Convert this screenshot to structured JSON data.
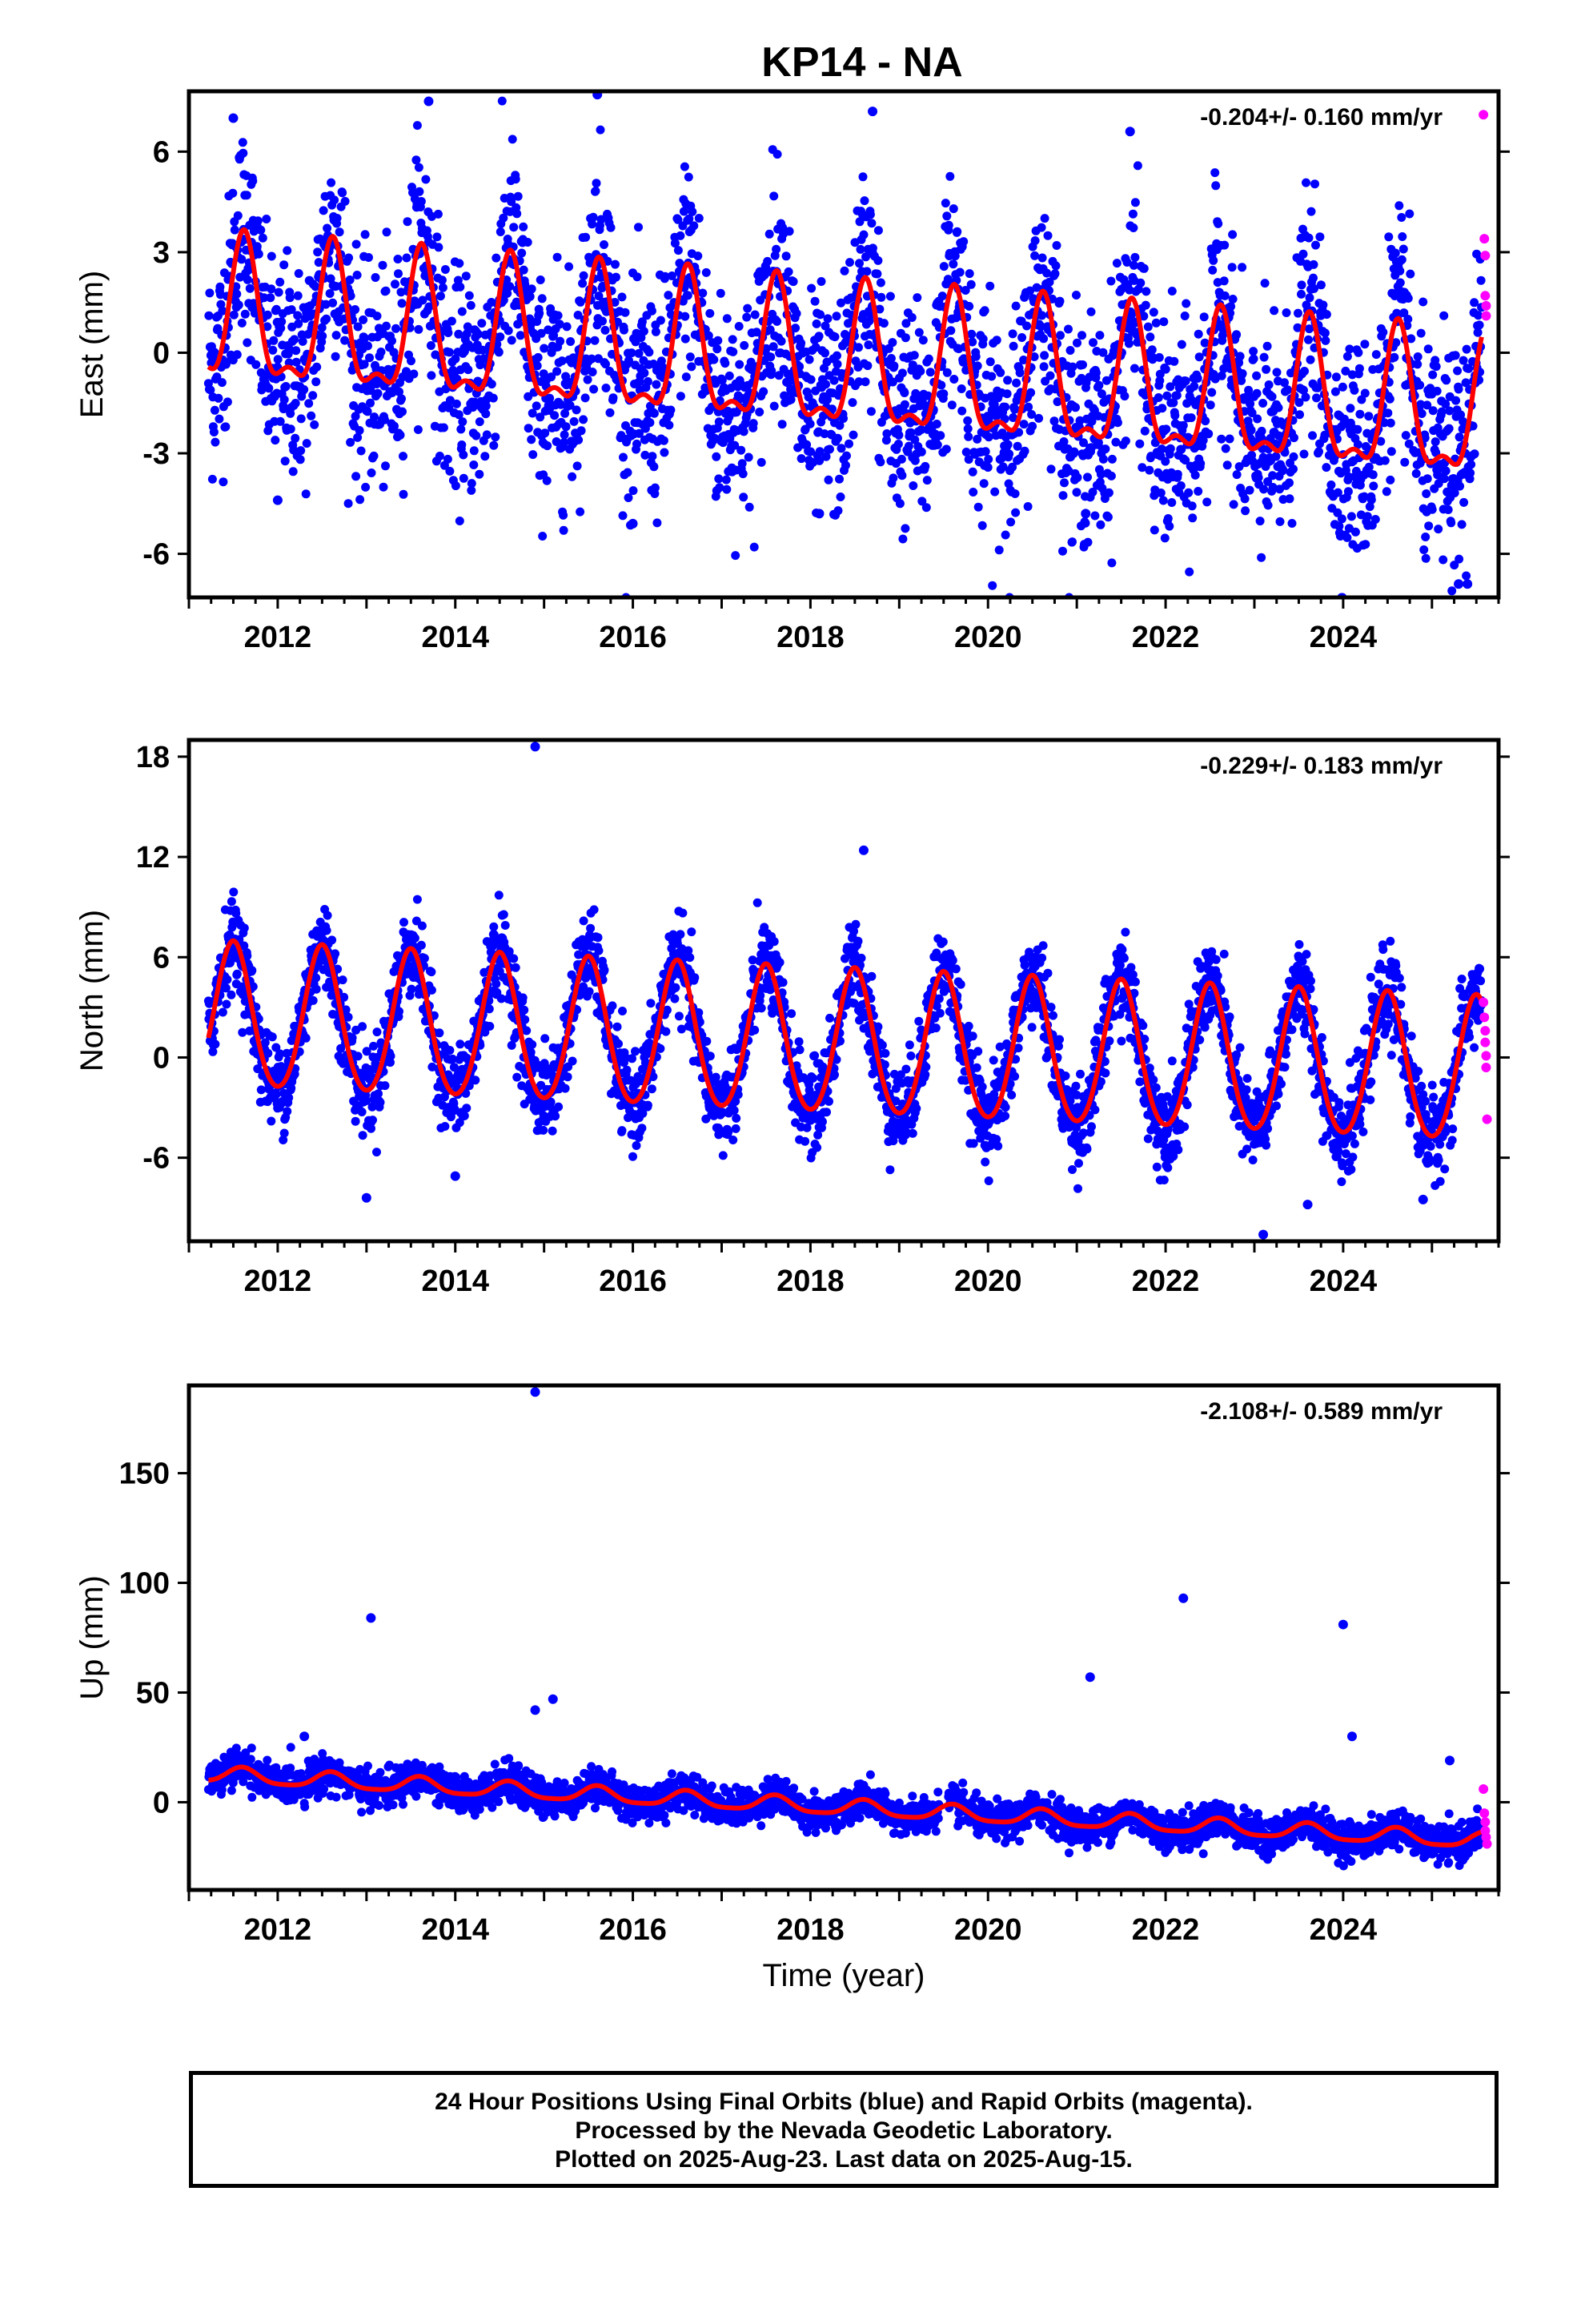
{
  "title": "KP14 - NA",
  "colors": {
    "final": "#0000ff",
    "rapid": "#ff00ff",
    "model": "#ff0000",
    "frame": "#000000"
  },
  "footer": {
    "line1": "24 Hour Positions Using Final Orbits (blue) and Rapid Orbits (magenta).",
    "line2": "Processed by the Nevada Geodetic Laboratory.",
    "line3": "Plotted on 2025-Aug-23. Last data on 2025-Aug-15."
  },
  "xlabel": "Time (year)",
  "chart_data": [
    {
      "type": "scatter",
      "ylabel": "East (mm)",
      "rate": "-0.204+/- 0.160 mm/yr",
      "xlim": [
        2011.0,
        2025.75
      ],
      "ylim": [
        -7.3,
        7.8
      ],
      "yticks": [
        -6,
        -3,
        0,
        3,
        6
      ],
      "xticks": [
        2012,
        2014,
        2016,
        2018,
        2020,
        2022,
        2024
      ],
      "trend_per_year": -0.204,
      "annual_amp": 2.0,
      "semiannual_amp": 0.8,
      "peak_phase": 0.62,
      "offset": 1.0,
      "noise": 1.6,
      "outliers": [
        [
          2011.5,
          7.0
        ],
        [
          2013.7,
          7.5
        ],
        [
          2015.6,
          7.7
        ],
        [
          2018.7,
          7.2
        ],
        [
          2021.6,
          6.6
        ],
        [
          2012.0,
          -4.4
        ],
        [
          2016.0,
          -5.1
        ],
        [
          2018.1,
          -4.8
        ],
        [
          2021.1,
          -4.8
        ],
        [
          2025.3,
          -6.9
        ],
        [
          2025.4,
          -6.9
        ]
      ],
      "rapid": [
        [
          2025.58,
          7.1
        ],
        [
          2025.59,
          3.4
        ],
        [
          2025.6,
          2.9
        ],
        [
          2025.6,
          1.7
        ],
        [
          2025.61,
          1.4
        ],
        [
          2025.61,
          1.1
        ]
      ]
    },
    {
      "type": "scatter",
      "ylabel": "North (mm)",
      "rate": "-0.229+/- 0.183 mm/yr",
      "xlim": [
        2011.0,
        2025.75
      ],
      "ylim": [
        -11,
        19
      ],
      "yticks": [
        -6,
        0,
        6,
        12,
        18
      ],
      "xticks": [
        2012,
        2014,
        2016,
        2018,
        2020,
        2022,
        2024
      ],
      "trend_per_year": -0.229,
      "annual_amp": 4.3,
      "semiannual_amp": 0.4,
      "peak_phase": 0.5,
      "offset": 2.4,
      "noise": 1.3,
      "outliers": [
        [
          2014.9,
          18.6
        ],
        [
          2018.6,
          12.4
        ],
        [
          2013.0,
          -8.4
        ],
        [
          2014.0,
          -7.1
        ],
        [
          2023.1,
          -10.6
        ],
        [
          2023.6,
          -8.8
        ],
        [
          2024.9,
          -8.5
        ]
      ],
      "rapid": [
        [
          2025.58,
          3.3
        ],
        [
          2025.59,
          2.4
        ],
        [
          2025.6,
          1.6
        ],
        [
          2025.6,
          0.9
        ],
        [
          2025.61,
          0.1
        ],
        [
          2025.61,
          -0.6
        ],
        [
          2025.62,
          -3.7
        ]
      ]
    },
    {
      "type": "scatter",
      "ylabel": "Up (mm)",
      "rate": "-2.108+/- 0.589 mm/yr",
      "xlim": [
        2011.0,
        2025.75
      ],
      "ylim": [
        -40,
        190
      ],
      "yticks": [
        0,
        50,
        100,
        150
      ],
      "xticks": [
        2012,
        2014,
        2016,
        2018,
        2020,
        2022,
        2024
      ],
      "trend_per_year": -2.108,
      "annual_amp": 3.5,
      "semiannual_amp": 0.8,
      "peak_phase": 0.6,
      "offset": 13.0,
      "noise": 4.0,
      "outliers": [
        [
          2014.9,
          187
        ],
        [
          2013.05,
          84
        ],
        [
          2022.2,
          93
        ],
        [
          2024.0,
          81
        ],
        [
          2021.15,
          57
        ],
        [
          2015.1,
          47
        ],
        [
          2014.9,
          42
        ],
        [
          2024.1,
          30
        ],
        [
          2012.3,
          30
        ],
        [
          2025.2,
          19
        ]
      ],
      "rapid": [
        [
          2025.58,
          6.0
        ],
        [
          2025.59,
          -5.0
        ],
        [
          2025.6,
          -9.0
        ],
        [
          2025.6,
          -13.0
        ],
        [
          2025.61,
          -16.0
        ],
        [
          2025.62,
          -19.0
        ]
      ]
    }
  ]
}
